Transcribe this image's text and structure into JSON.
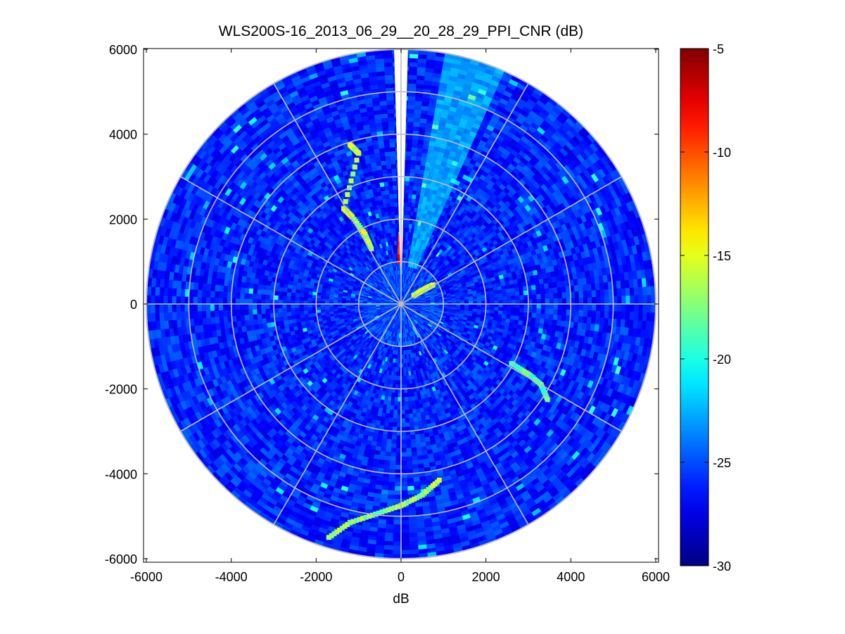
{
  "figure": {
    "title": "WLS200S-16_2013_06_29__20_28_29_PPI_CNR (dB)",
    "xlabel": "dB",
    "ylabel": ""
  },
  "chart_data": {
    "type": "heatmap",
    "subtype": "polar-ppi-scan",
    "title": "WLS200S-16_2013_06_29__20_28_29_PPI_CNR (dB)",
    "xlabel": "dB",
    "ylabel": "",
    "xlim": [
      -6000,
      6000
    ],
    "ylim": [
      -6000,
      6000
    ],
    "x_ticks": [
      -6000,
      -4000,
      -2000,
      0,
      2000,
      4000,
      6000
    ],
    "y_ticks": [
      -6000,
      -4000,
      -2000,
      0,
      2000,
      4000,
      6000
    ],
    "x_tick_labels": [
      "-6000",
      "-4000",
      "-2000",
      "0",
      "2000",
      "4000",
      "6000"
    ],
    "y_tick_labels": [
      "-6000",
      "-4000",
      "-2000",
      "0",
      "2000",
      "4000",
      "6000"
    ],
    "max_range": 6000,
    "range_rings": [
      1000,
      2000,
      3000,
      4000,
      5000,
      6000
    ],
    "radial_lines_deg": [
      0,
      30,
      60,
      90,
      120,
      150,
      180,
      210,
      240,
      270,
      300,
      330
    ],
    "grid": true,
    "colormap": "jet",
    "clim": [
      -30,
      -5
    ],
    "colorbar": {
      "position": "right",
      "ticks": [
        -5,
        -10,
        -15,
        -20,
        -25,
        -30
      ],
      "tick_labels": [
        "-5",
        "-10",
        "-15",
        "-20",
        "-25",
        "-30"
      ]
    },
    "background_value": -26,
    "no_data_sector_deg": [
      -1.5,
      1.5
    ],
    "features": [
      {
        "name": "south-southwest arc",
        "value": -17,
        "path": [
          [
            -1700,
            -5500
          ],
          [
            -1200,
            -5150
          ],
          [
            -600,
            -4950
          ],
          [
            0,
            -4750
          ],
          [
            500,
            -4500
          ],
          [
            900,
            -4150
          ]
        ]
      },
      {
        "name": "northwest arc",
        "value": -16,
        "path": [
          [
            -1200,
            3750
          ],
          [
            -1000,
            3550
          ],
          [
            -1350,
            2250
          ],
          [
            -1150,
            2050
          ],
          [
            -850,
            1650
          ],
          [
            -700,
            1300
          ]
        ]
      },
      {
        "name": "southeast streak",
        "value": -19,
        "path": [
          [
            2600,
            -1400
          ],
          [
            3000,
            -1650
          ],
          [
            3300,
            -1900
          ],
          [
            3450,
            -2250
          ]
        ]
      },
      {
        "name": "near-north spike",
        "value": -8,
        "path": [
          [
            -30,
            1000
          ],
          [
            -10,
            1600
          ]
        ]
      },
      {
        "name": "northeast near returns",
        "value": -16,
        "path": [
          [
            300,
            200
          ],
          [
            550,
            350
          ],
          [
            750,
            450
          ]
        ]
      },
      {
        "name": "north-northeast bright wedge",
        "value": -23,
        "az_deg": [
          10,
          24
        ],
        "range": [
          900,
          6000
        ]
      }
    ]
  }
}
